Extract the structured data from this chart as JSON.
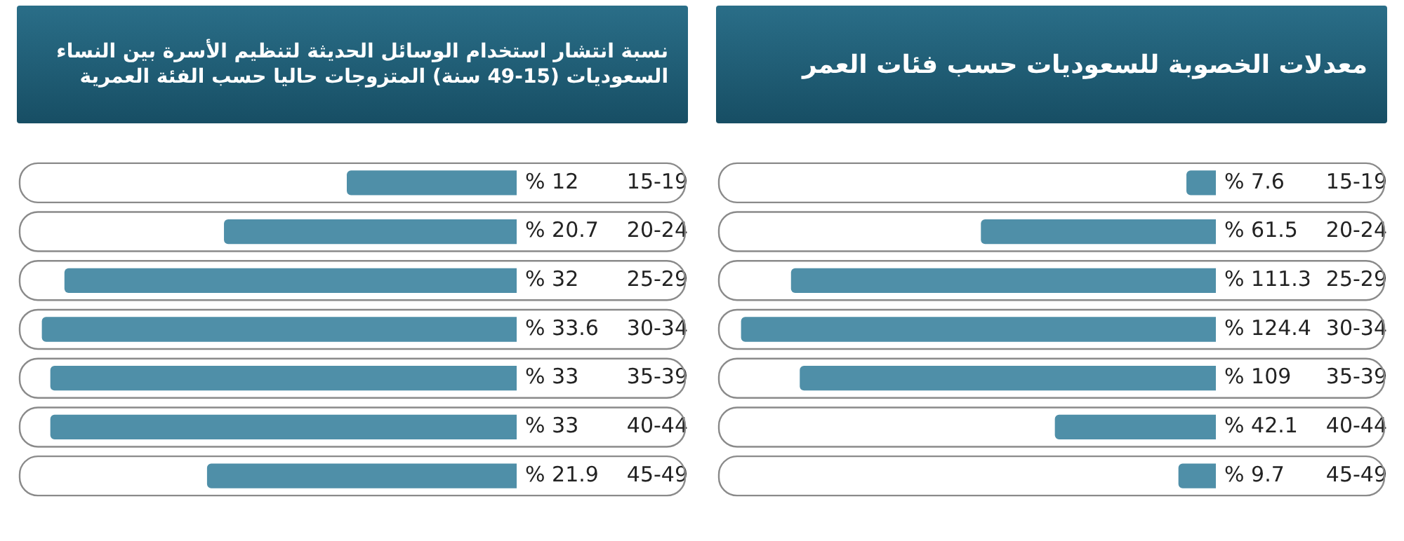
{
  "chart_data": [
    {
      "type": "bar",
      "orientation": "horizontal",
      "title": "معدلات الخصوبة للسعوديات حسب فئات العمر",
      "categories": [
        "15-19",
        "20-24",
        "25-29",
        "30-34",
        "35-39",
        "40-44",
        "45-49"
      ],
      "values": [
        7.6,
        61.5,
        111.3,
        124.4,
        109,
        42.1,
        9.7
      ],
      "value_labels": [
        "% 7.6",
        "% 61.5",
        "% 111.3",
        "% 124.4",
        "% 109",
        "% 42.1",
        "% 9.7"
      ],
      "color": "#4f8fa8",
      "tick_labels": "y"
    },
    {
      "type": "bar",
      "orientation": "horizontal",
      "title": "نسبة انتشار استخدام الوسائل الحديثة لتنظيم الأسرة بين النساء السعوديات (15-49 سنة) المتزوجات حاليا حسب الفئة العمرية",
      "categories": [
        "15-19",
        "20-24",
        "25-29",
        "30-34",
        "35-39",
        "40-44",
        "45-49"
      ],
      "values": [
        12,
        20.7,
        32,
        33.6,
        33,
        33,
        21.9
      ],
      "value_labels": [
        "% 12",
        "% 20.7",
        "% 32",
        "% 33.6",
        "% 33",
        "% 33",
        "% 21.9"
      ],
      "color": "#4f8fa8",
      "tick_labels": "y"
    }
  ]
}
